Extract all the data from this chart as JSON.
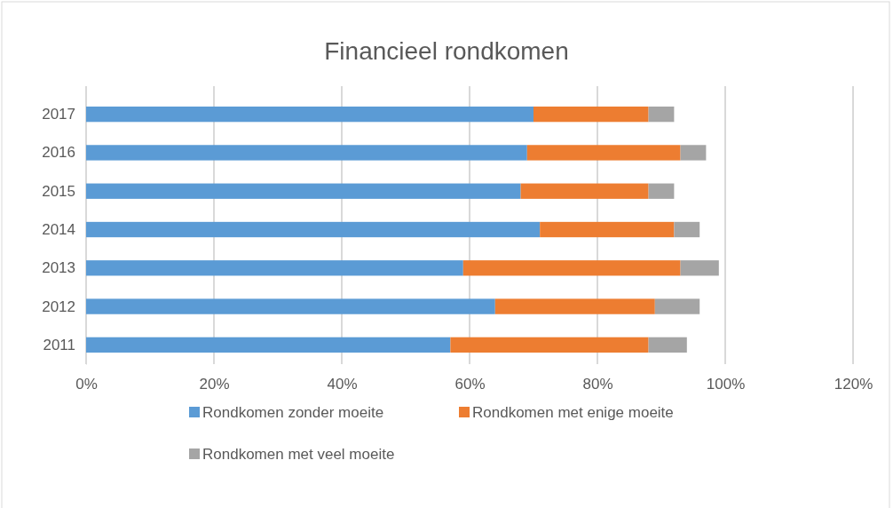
{
  "chart_data": {
    "type": "bar",
    "orientation": "horizontal",
    "stacked": true,
    "title": "Financieel rondkomen",
    "categories": [
      "2017",
      "2016",
      "2015",
      "2014",
      "2013",
      "2012",
      "2011"
    ],
    "series": [
      {
        "name": "Rondkomen zonder moeite",
        "color": "#5b9bd5",
        "values": [
          70,
          69,
          68,
          71,
          59,
          64,
          57
        ]
      },
      {
        "name": "Rondkomen met enige moeite",
        "color": "#ed7d31",
        "values": [
          18,
          24,
          20,
          21,
          34,
          25,
          31
        ]
      },
      {
        "name": "Rondkomen met veel moeite",
        "color": "#a5a5a5",
        "values": [
          4,
          4,
          4,
          4,
          6,
          7,
          6
        ]
      }
    ],
    "xlim": [
      0,
      120
    ],
    "xticks": [
      {
        "value": 0,
        "label": "0%"
      },
      {
        "value": 20,
        "label": "20%"
      },
      {
        "value": 40,
        "label": "40%"
      },
      {
        "value": 60,
        "label": "60%"
      },
      {
        "value": 80,
        "label": "80%"
      },
      {
        "value": 100,
        "label": "100%"
      },
      {
        "value": 120,
        "label": "120%"
      }
    ],
    "grid": "x",
    "legend": "bottom"
  }
}
